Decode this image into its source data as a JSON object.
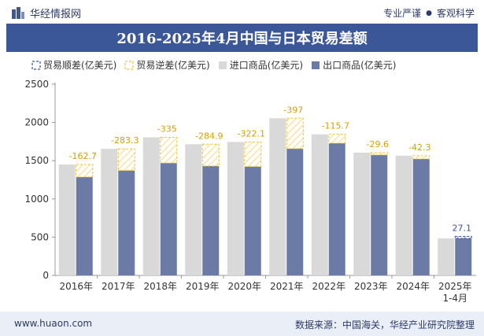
{
  "header": {
    "brand": "华经情报网",
    "right_left": "专业严谨",
    "right_right": "客观科学"
  },
  "title": "2016-2025年4月中国与日本贸易差额",
  "legend": {
    "surplus": "贸易顺差(亿美元)",
    "deficit": "贸易逆差(亿美元)",
    "import": "进口商品(亿美元)",
    "export": "出口商品(亿美元)"
  },
  "footer": {
    "left": "www.huaon.com",
    "right": "数据来源：中国海关，华经产业研究院整理"
  },
  "colors": {
    "import": "#d9d9d9",
    "export": "#6b7ba6",
    "deficit_border": "#f2c230",
    "surplus_border": "#3b5797",
    "label_deficit": "#d4a000",
    "label_surplus": "#3b5797",
    "title_bar": "#3b5797"
  },
  "chart_data": {
    "type": "bar",
    "categories": [
      "2016年",
      "2017年",
      "2018年",
      "2019年",
      "2020年",
      "2021年",
      "2022年",
      "2023年",
      "2024年",
      "2025年\n1-4月"
    ],
    "series": [
      {
        "name": "进口商品(亿美元)",
        "values": [
          1450,
          1655,
          1805,
          1715,
          1745,
          2055,
          1845,
          1605,
          1565,
          484
        ]
      },
      {
        "name": "出口商品(亿美元)",
        "values": [
          1287,
          1372,
          1470,
          1430,
          1423,
          1658,
          1729,
          1575,
          1523,
          511
        ]
      }
    ],
    "balance": [
      {
        "value": -162.7,
        "label": "-162.7"
      },
      {
        "value": -283.3,
        "label": "-283.3"
      },
      {
        "value": -335,
        "label": "-335"
      },
      {
        "value": -284.9,
        "label": "-284.9"
      },
      {
        "value": -322.1,
        "label": "-322.1"
      },
      {
        "value": -397,
        "label": "-397"
      },
      {
        "value": -115.7,
        "label": "-115.7"
      },
      {
        "value": -29.6,
        "label": "-29.6"
      },
      {
        "value": -42.3,
        "label": "-42.3"
      },
      {
        "value": 27.1,
        "label": "27.1"
      }
    ],
    "ylim": [
      0,
      2500
    ],
    "yticks": [
      0,
      500,
      1000,
      1500,
      2000,
      2500
    ],
    "grid": false,
    "legend_position": "top"
  }
}
